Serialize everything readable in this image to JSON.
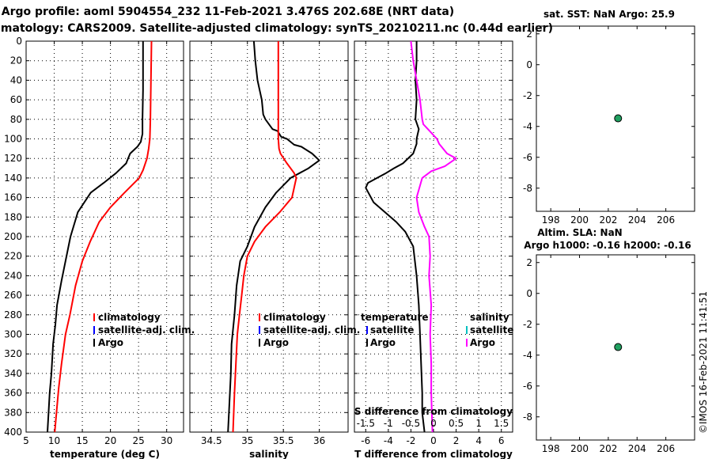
{
  "titles": {
    "line1": "Argo profile: aoml 5904554_232 11-Feb-2021 3.476S 202.68E (NRT data)",
    "line2": "Climatology: CARS2009. Satellite-adjusted climatology: synTS_20210211.nc (0.44d earlier)",
    "sst": "sat. SST: NaN Argo: 25.9",
    "sla1": "Altim. SLA: NaN",
    "sla2": "Argo h1000: -0.16 h2000: -0.16",
    "credit": "©IMOS 16-Feb-2021 11:41:51"
  },
  "colors": {
    "argo": "#000000",
    "clim": "#ff0000",
    "satclim": "#0000ff",
    "sal_diff": "#ff00ff",
    "sal_sat": "#00c0c0",
    "marker": "#20a060"
  },
  "chart_data": [
    {
      "type": "line",
      "name": "temperature",
      "xlabel": "temperature (deg C)",
      "ylabel": "depth",
      "xlim": [
        5,
        33
      ],
      "ylim": [
        400,
        0
      ],
      "xticks": [
        5,
        10,
        15,
        20,
        25,
        30
      ],
      "yticks": [
        0,
        20,
        40,
        60,
        80,
        100,
        120,
        140,
        160,
        180,
        200,
        220,
        240,
        260,
        280,
        300,
        320,
        340,
        360,
        380,
        400
      ],
      "legend": [
        "climatology",
        "satellite-adj. clim.",
        "Argo"
      ],
      "series": [
        {
          "name": "Argo",
          "color": "#000000",
          "x": [
            25.8,
            25.8,
            25.8,
            25.7,
            25.7,
            25.5,
            25.4,
            24.8,
            23.5,
            23.0,
            22.8,
            21.0,
            18.8,
            16.5,
            14.2,
            12.9,
            12.0,
            11.3,
            10.5,
            10.2,
            9.8,
            9.5,
            9.2,
            9.0,
            8.8
          ],
          "y": [
            0,
            20,
            50,
            80,
            95,
            100,
            103,
            108,
            115,
            122,
            125,
            135,
            145,
            155,
            175,
            200,
            225,
            245,
            270,
            290,
            310,
            340,
            360,
            380,
            400
          ]
        },
        {
          "name": "climatology",
          "color": "#ff0000",
          "x": [
            27.3,
            27.2,
            27.1,
            27.0,
            26.8,
            26.5,
            25.8,
            25.1,
            22.5,
            20.0,
            18.0,
            16.4,
            15.0,
            13.8,
            12.8,
            12.0,
            11.3,
            10.8,
            10.4,
            10.1
          ],
          "y": [
            0,
            40,
            80,
            100,
            110,
            120,
            132,
            140,
            155,
            170,
            185,
            205,
            225,
            250,
            280,
            300,
            330,
            355,
            380,
            400
          ]
        }
      ]
    },
    {
      "type": "line",
      "name": "salinity",
      "xlabel": "salinity",
      "xlim": [
        34.2,
        36.4
      ],
      "ylim": [
        400,
        0
      ],
      "xticks": [
        34.5,
        35,
        35.5,
        36
      ],
      "xticklabels": [
        "34.5",
        "35",
        "35.5",
        "36"
      ],
      "legend": [
        "climatology",
        "satellite-adj. clim.",
        "Argo"
      ],
      "series": [
        {
          "name": "Argo",
          "color": "#000000",
          "x": [
            35.09,
            35.11,
            35.14,
            35.17,
            35.2,
            35.22,
            35.25,
            35.35,
            35.42,
            35.47,
            35.55,
            35.65,
            35.75,
            35.9,
            36.0,
            35.85,
            35.6,
            35.4,
            35.25,
            35.1,
            35.0,
            34.9,
            34.85,
            34.82,
            34.78,
            34.77,
            34.75,
            34.73
          ],
          "y": [
            0,
            20,
            40,
            50,
            60,
            75,
            80,
            90,
            92,
            98,
            100,
            106,
            108,
            115,
            122,
            130,
            140,
            155,
            170,
            190,
            210,
            225,
            250,
            280,
            310,
            340,
            370,
            400
          ]
        },
        {
          "name": "climatology",
          "color": "#ff0000",
          "x": [
            35.43,
            35.43,
            35.43,
            35.43,
            35.44,
            35.46,
            35.55,
            35.65,
            35.68,
            35.62,
            35.45,
            35.25,
            35.1,
            35.0,
            34.95,
            34.92,
            34.89,
            34.86,
            34.84,
            34.82,
            34.8
          ],
          "y": [
            0,
            40,
            80,
            100,
            110,
            115,
            125,
            135,
            140,
            160,
            175,
            190,
            205,
            220,
            240,
            260,
            280,
            300,
            330,
            360,
            400
          ]
        }
      ]
    },
    {
      "type": "line",
      "name": "difference",
      "xlabel": "T difference from climatology",
      "xlabel_top": "S difference from climatology",
      "xlim": [
        -7,
        7
      ],
      "ylim": [
        400,
        0
      ],
      "xticks": [
        -6,
        -4,
        -2,
        0,
        2,
        4,
        6
      ],
      "xticklabels": [
        "-6",
        "-4",
        "-2",
        "0",
        "2",
        "4",
        "6"
      ],
      "xticks_s": [
        -1.5,
        -1,
        -0.5,
        0,
        0.5,
        1,
        1.5
      ],
      "legend_t": [
        "temperature",
        "satellite",
        "Argo"
      ],
      "legend_s": [
        "salinity",
        "satellite",
        "Argo"
      ],
      "series": [
        {
          "name": "T difference",
          "color": "#000000",
          "x": [
            -1.5,
            -1.5,
            -1.6,
            -1.5,
            -1.6,
            -1.3,
            -1.5,
            -1.5,
            -1.8,
            -2.7,
            -3.5,
            -4.2,
            -5.0,
            -5.8,
            -6.0,
            -5.3,
            -4.3,
            -3.3,
            -2.5,
            -1.8,
            -1.5,
            -1.3,
            -1.2,
            -1.1,
            -1.0,
            -1.0,
            -0.8
          ],
          "y": [
            0,
            20,
            40,
            60,
            80,
            90,
            100,
            105,
            115,
            125,
            130,
            135,
            140,
            145,
            150,
            165,
            175,
            185,
            195,
            210,
            240,
            270,
            300,
            330,
            360,
            380,
            400
          ]
        },
        {
          "name": "S difference",
          "color": "#ff00ff",
          "x": [
            -2.0,
            -1.8,
            -1.5,
            -1.2,
            -1.0,
            -0.9,
            -0.5,
            0.3,
            0.5,
            1.2,
            2.0,
            1.0,
            -0.2,
            -1.0,
            -1.5,
            -1.3,
            -0.8,
            -0.4,
            -0.3,
            -0.4,
            -0.2,
            -0.3,
            -0.2,
            -0.2,
            -0.1
          ],
          "y": [
            0,
            20,
            40,
            60,
            80,
            85,
            90,
            100,
            105,
            115,
            120,
            128,
            133,
            140,
            160,
            175,
            190,
            200,
            220,
            240,
            270,
            300,
            330,
            360,
            400
          ]
        }
      ]
    },
    {
      "type": "scatter",
      "name": "SST anomaly",
      "xlim": [
        197,
        208
      ],
      "ylim": [
        -9.5,
        2.5
      ],
      "xticks": [
        198,
        200,
        202,
        204,
        206
      ],
      "yticks": [
        2,
        0,
        -2,
        -4,
        -6,
        -8
      ],
      "points": [
        {
          "x": 202.68,
          "y": -3.476
        }
      ]
    },
    {
      "type": "scatter",
      "name": "SLA",
      "xlim": [
        197,
        208
      ],
      "ylim": [
        -9.5,
        2.5
      ],
      "xticks": [
        198,
        200,
        202,
        204,
        206
      ],
      "yticks": [
        2,
        0,
        -2,
        -4,
        -6,
        -8
      ],
      "points": [
        {
          "x": 202.68,
          "y": -3.476
        }
      ]
    }
  ]
}
